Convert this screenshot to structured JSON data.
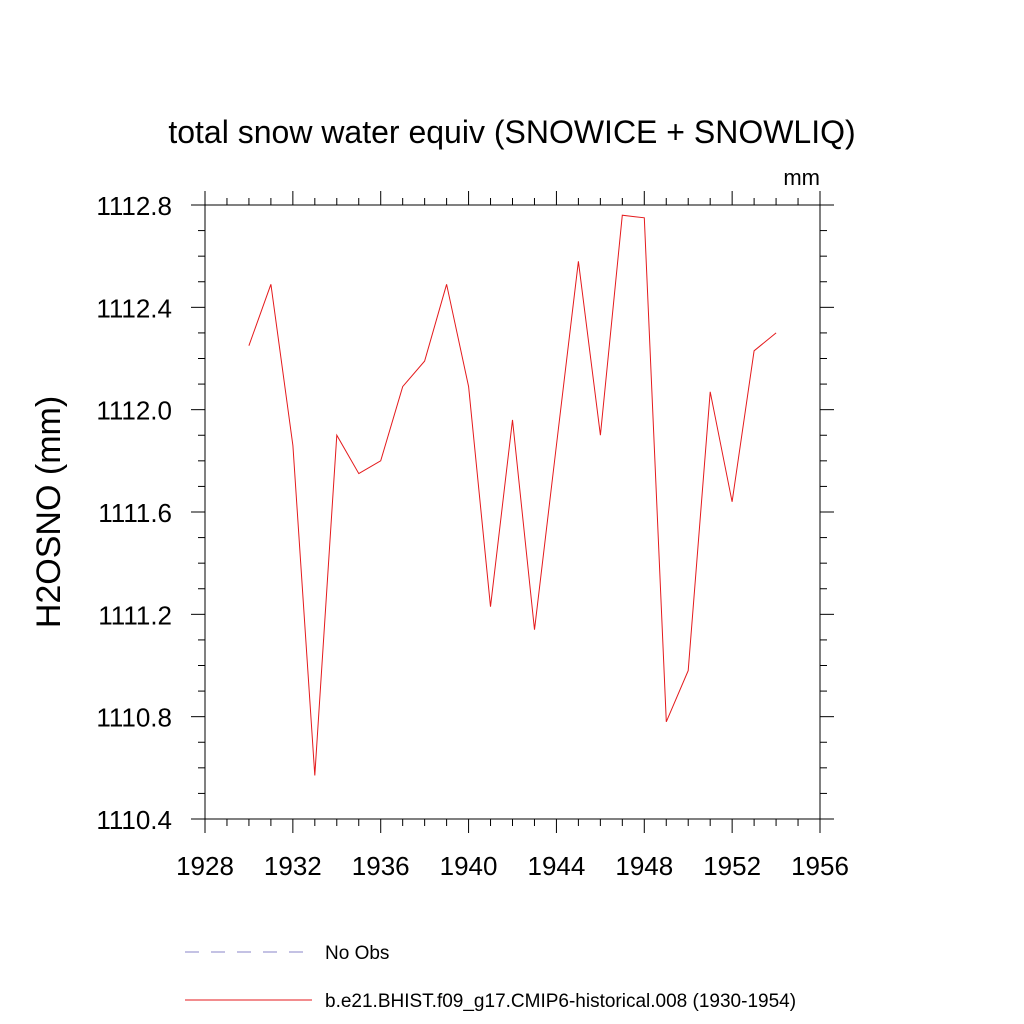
{
  "chart_data": {
    "type": "line",
    "title": "total snow water equiv (SNOWICE + SNOWLIQ)",
    "units_label": "mm",
    "ylabel": "H2OSNO  (mm)",
    "xlabel": "",
    "xlim": [
      1928,
      1956
    ],
    "ylim": [
      1110.4,
      1112.8
    ],
    "x_ticks": [
      1928,
      1932,
      1936,
      1940,
      1944,
      1948,
      1952,
      1956
    ],
    "x_tick_labels": [
      "1928",
      "1932",
      "1936",
      "1940",
      "1944",
      "1948",
      "1952",
      "1956"
    ],
    "y_ticks": [
      1110.4,
      1110.8,
      1111.2,
      1111.6,
      1112.0,
      1112.4,
      1112.8
    ],
    "y_tick_labels": [
      "1110.4",
      "1110.8",
      "1111.2",
      "1111.6",
      "1112.0",
      "1112.4",
      "1112.8"
    ],
    "grid": false,
    "legend_position": "bottom",
    "series": [
      {
        "name": "No Obs",
        "color": "#8a84c8",
        "style": "dashed",
        "x": [],
        "values": []
      },
      {
        "name": "b.e21.BHIST.f09_g17.CMIP6-historical.008 (1930-1954)",
        "color": "#e41a1c",
        "style": "solid",
        "x": [
          1930,
          1931,
          1932,
          1933,
          1934,
          1935,
          1936,
          1937,
          1938,
          1939,
          1940,
          1941,
          1942,
          1943,
          1944,
          1945,
          1946,
          1947,
          1948,
          1949,
          1950,
          1951,
          1952,
          1953,
          1954
        ],
        "values": [
          1112.25,
          1112.49,
          1111.86,
          1110.57,
          1111.9,
          1111.75,
          1111.8,
          1112.09,
          1112.19,
          1112.49,
          1112.09,
          1111.23,
          1111.96,
          1111.14,
          1111.86,
          1112.58,
          1111.9,
          1112.76,
          1112.75,
          1110.78,
          1110.98,
          1112.07,
          1111.64,
          1112.23,
          1112.3
        ]
      }
    ]
  }
}
